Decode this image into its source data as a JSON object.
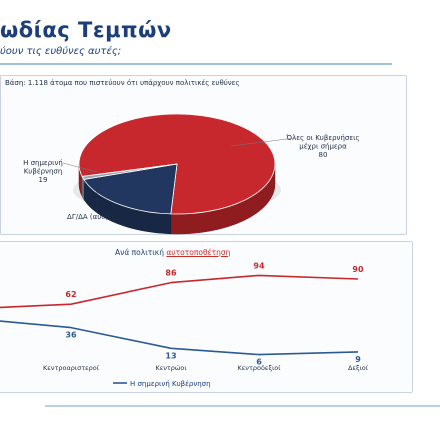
{
  "header": {
    "title": "ωδίας Τεμπών",
    "subtitle": "ύουν τις ευθύνες αυτές;"
  },
  "pie_panel": {
    "base": "Βάση: 1.118 άτομα που πιστεύουν ότι υπάρχουν πολιτικές ευθύνες"
  },
  "line_panel": {
    "label_prefix": "Ανά πολιτική ",
    "label_underlined": "αυτοτοποθέτηση",
    "legend_label": "Η σημερινή Κυβέρνηση"
  },
  "colors": {
    "red": "#c6282d",
    "navy": "#22375f",
    "blue": "#2c5a92",
    "grey": "#9aa4ad"
  },
  "chart_data": [
    {
      "type": "pie",
      "slices": [
        {
          "label": [
            "Όλες οι Κυβερνήσεις",
            "μέχρι σήμερα"
          ],
          "value": 80,
          "color": "#c6282d"
        },
        {
          "label": [
            "Η σημερινή",
            "Κυβέρνηση"
          ],
          "value": 19,
          "color": "#22375f"
        },
        {
          "label": [
            "ΔΓ/ΔΑ (αυθ)"
          ],
          "value": 1,
          "color": "#9aa4ad"
        }
      ]
    },
    {
      "type": "line",
      "categories": [
        "",
        "Κεντροαριστεροί",
        "Κεντρώοι",
        "Κεντροδεξιοί",
        "Δεξιοί"
      ],
      "ylim": [
        0,
        100
      ],
      "series": [
        {
          "values": [
            null,
            62,
            86,
            94,
            90
          ],
          "color": "#c6282d"
        },
        {
          "name": "Η σημερινή Κυβέρνηση",
          "values": [
            null,
            36,
            13,
            6,
            9
          ],
          "color": "#2c5a92"
        }
      ]
    }
  ]
}
